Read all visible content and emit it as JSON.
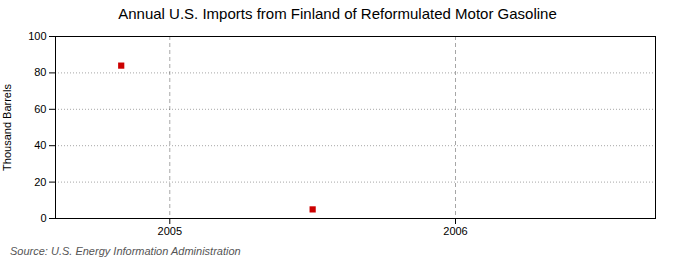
{
  "chart_data": {
    "type": "scatter",
    "title": "Annual U.S. Imports from Finland of Reformulated Motor Gasoline",
    "ylabel": "Thousand Barrels",
    "source": "Source: U.S. Energy Information Administration",
    "x": [
      2004.83,
      2005.5
    ],
    "values": [
      84,
      5
    ],
    "color": "#cc0000",
    "marker": "square",
    "xlim": [
      2004.6,
      2006.7
    ],
    "ylim": [
      0,
      100
    ],
    "xticks": [
      2005,
      2006
    ],
    "yticks": [
      0,
      20,
      40,
      60,
      80,
      100
    ],
    "grid": true
  }
}
